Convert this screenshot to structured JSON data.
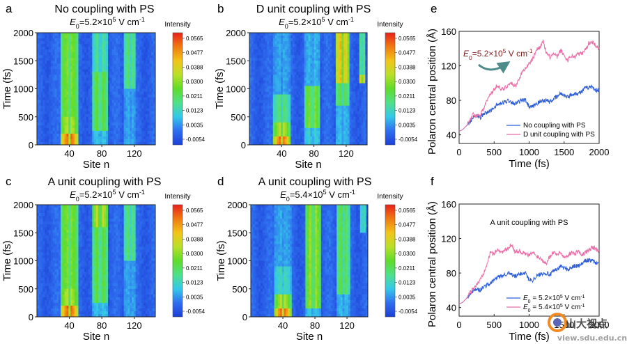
{
  "colorbar": {
    "label": "Intensity",
    "ticks": [
      "0.0565",
      "0.0477",
      "0.0388",
      "0.0300",
      "0.0211",
      "0.0123",
      "0.0035",
      "-0.0054"
    ],
    "range": [
      -0.0085,
      0.061
    ],
    "colors": [
      "#1c3fd6",
      "#2f6ef0",
      "#35c8ea",
      "#4fe08a",
      "#5fdc2a",
      "#b9e02a",
      "#f2c418",
      "#f07a12",
      "#e8201a"
    ]
  },
  "chart_data": [
    {
      "id": "a",
      "type": "heatmap",
      "letter": "a",
      "title": "No coupling with PS",
      "subtitle": {
        "prefix": "E",
        "sub": "0",
        "eq": "=5.2×10",
        "sup": "5",
        "unit": " V cm",
        "unitsup": "-1"
      },
      "xlabel": "Site n",
      "ylabel": "Time (fs)",
      "xticks": [
        40,
        80,
        120
      ],
      "yticks": [
        0,
        500,
        1000,
        1500,
        2000
      ],
      "xlim": [
        0,
        146
      ],
      "ylim": [
        0,
        2000
      ],
      "bands": [
        {
          "center": 40,
          "width": 22,
          "segments": [
            [
              0,
              200,
              0.055
            ],
            [
              200,
              500,
              0.036
            ],
            [
              500,
              2000,
              0.03
            ]
          ]
        },
        {
          "center": 78,
          "width": 18,
          "segments": [
            [
              0,
              250,
              0.01
            ],
            [
              250,
              1300,
              0.028
            ],
            [
              1300,
              2000,
              0.018
            ]
          ]
        },
        {
          "center": 115,
          "width": 14,
          "segments": [
            [
              0,
              1000,
              0.006
            ],
            [
              1000,
              2000,
              0.022
            ]
          ]
        }
      ]
    },
    {
      "id": "b",
      "type": "heatmap",
      "letter": "b",
      "title": "D unit coupling with PS",
      "subtitle": {
        "prefix": "E",
        "sub": "0",
        "eq": "=5.2×10",
        "sup": "5",
        "unit": " V cm",
        "unitsup": "-1"
      },
      "xlabel": "Site n",
      "ylabel": "Time (fs)",
      "xticks": [
        40,
        80,
        120
      ],
      "yticks": [
        0,
        500,
        1000,
        1500,
        2000
      ],
      "xlim": [
        0,
        146
      ],
      "ylim": [
        0,
        2000
      ],
      "bands": [
        {
          "center": 40,
          "width": 20,
          "segments": [
            [
              0,
              150,
              0.055
            ],
            [
              150,
              400,
              0.036
            ],
            [
              400,
              900,
              0.02
            ],
            [
              900,
              2000,
              0.006
            ]
          ]
        },
        {
          "center": 78,
          "width": 18,
          "segments": [
            [
              0,
              300,
              0.012
            ],
            [
              300,
              1050,
              0.032
            ],
            [
              1050,
              2000,
              0.008
            ]
          ]
        },
        {
          "center": 115,
          "width": 18,
          "segments": [
            [
              0,
              700,
              0.008
            ],
            [
              700,
              1100,
              0.024
            ],
            [
              1100,
              2000,
              0.046
            ]
          ]
        },
        {
          "center": 140,
          "width": 8,
          "segments": [
            [
              1100,
              1250,
              0.05
            ],
            [
              1250,
              2000,
              0.022
            ]
          ]
        }
      ]
    },
    {
      "id": "c",
      "type": "heatmap",
      "letter": "c",
      "title": "A unit coupling with PS",
      "subtitle": {
        "prefix": "E",
        "sub": "0",
        "eq": "=5.2×10",
        "sup": "5",
        "unit": " V cm",
        "unitsup": "-1"
      },
      "xlabel": "Site n",
      "ylabel": "Time (fs)",
      "xticks": [
        40,
        80,
        120
      ],
      "yticks": [
        0,
        500,
        1000,
        1500,
        2000
      ],
      "xlim": [
        0,
        146
      ],
      "ylim": [
        0,
        2000
      ],
      "bands": [
        {
          "center": 40,
          "width": 22,
          "segments": [
            [
              0,
              200,
              0.055
            ],
            [
              200,
              500,
              0.036
            ],
            [
              500,
              2000,
              0.03
            ]
          ]
        },
        {
          "center": 78,
          "width": 18,
          "segments": [
            [
              0,
              250,
              0.01
            ],
            [
              250,
              1600,
              0.028
            ],
            [
              1600,
              2000,
              0.04
            ]
          ]
        },
        {
          "center": 115,
          "width": 14,
          "segments": [
            [
              0,
              1000,
              0.006
            ],
            [
              1000,
              2000,
              0.022
            ]
          ]
        }
      ]
    },
    {
      "id": "d",
      "type": "heatmap",
      "letter": "d",
      "title": "A unit coupling with PS",
      "subtitle": {
        "prefix": "E",
        "sub": "0",
        "eq": "=5.4×10",
        "sup": "5",
        "unit": " V cm",
        "unitsup": "-1"
      },
      "xlabel": "Site n",
      "ylabel": "Time (fs)",
      "xticks": [
        40,
        80,
        120
      ],
      "yticks": [
        0,
        500,
        1000,
        1500,
        2000
      ],
      "xlim": [
        0,
        146
      ],
      "ylim": [
        0,
        2000
      ],
      "bands": [
        {
          "center": 40,
          "width": 20,
          "segments": [
            [
              0,
              150,
              0.055
            ],
            [
              150,
              400,
              0.036
            ],
            [
              400,
              900,
              0.014
            ],
            [
              900,
              2000,
              0.006
            ]
          ]
        },
        {
          "center": 78,
          "width": 20,
          "segments": [
            [
              0,
              150,
              0.01
            ],
            [
              150,
              2000,
              0.034
            ]
          ]
        },
        {
          "center": 115,
          "width": 16,
          "segments": [
            [
              0,
              400,
              0.008
            ],
            [
              400,
              2000,
              0.024
            ]
          ]
        },
        {
          "center": 140,
          "width": 6,
          "segments": [
            [
              1500,
              2000,
              0.018
            ]
          ]
        }
      ]
    },
    {
      "id": "e",
      "type": "line",
      "letter": "e",
      "xlabel": "Time (fs)",
      "ylabel": "Polaron central position (Å)",
      "xlim": [
        0,
        2000
      ],
      "ylim": [
        30,
        160
      ],
      "xticks": [
        0,
        500,
        1000,
        1500,
        2000
      ],
      "yticks": [
        40,
        80,
        120,
        160
      ],
      "annotation": {
        "prefix": "E",
        "sub": "0",
        "eq": "=5.2×10",
        "sup": "5",
        "unit": " V cm",
        "unitsup": "-1"
      },
      "legend_position": "bottom-right",
      "x": [
        0,
        50,
        100,
        150,
        200,
        250,
        300,
        350,
        400,
        450,
        500,
        550,
        600,
        650,
        700,
        750,
        800,
        850,
        900,
        950,
        1000,
        1050,
        1100,
        1150,
        1200,
        1250,
        1300,
        1350,
        1400,
        1450,
        1500,
        1550,
        1600,
        1650,
        1700,
        1750,
        1800,
        1850,
        1900,
        1950,
        2000
      ],
      "series": [
        {
          "name": "No coupling with PS",
          "color": "#2f5fd6",
          "values": [
            44,
            46,
            50,
            54,
            60,
            62,
            60,
            64,
            66,
            68,
            72,
            75,
            76,
            78,
            80,
            78,
            76,
            78,
            80,
            80,
            72,
            72,
            76,
            78,
            80,
            80,
            78,
            82,
            84,
            88,
            86,
            84,
            86,
            88,
            88,
            90,
            94,
            95,
            96,
            92,
            92
          ]
        },
        {
          "name": "D unit coupling with PS",
          "color": "#e86fa8",
          "values": [
            44,
            46,
            50,
            56,
            64,
            62,
            64,
            70,
            80,
            88,
            92,
            98,
            92,
            94,
            98,
            100,
            96,
            104,
            112,
            118,
            122,
            128,
            138,
            142,
            148,
            134,
            130,
            134,
            130,
            138,
            132,
            126,
            132,
            130,
            134,
            134,
            138,
            146,
            148,
            144,
            140
          ]
        }
      ]
    },
    {
      "id": "f",
      "type": "line",
      "letter": "f",
      "xlabel": "Time (fs)",
      "ylabel": "Polaron central position (Å)",
      "xlim": [
        0,
        2000
      ],
      "ylim": [
        30,
        160
      ],
      "xticks": [
        0,
        500,
        1000,
        1500,
        2000
      ],
      "yticks": [
        40,
        80,
        120,
        160
      ],
      "inset_title": "A unit coupling with PS",
      "legend_position": "bottom-right",
      "x": [
        0,
        50,
        100,
        150,
        200,
        250,
        300,
        350,
        400,
        450,
        500,
        550,
        600,
        650,
        700,
        750,
        800,
        850,
        900,
        950,
        1000,
        1050,
        1100,
        1150,
        1200,
        1250,
        1300,
        1350,
        1400,
        1450,
        1500,
        1550,
        1600,
        1650,
        1700,
        1750,
        1800,
        1850,
        1900,
        1950,
        2000
      ],
      "series": [
        {
          "name": "E0 = 5.2×10^5 V cm^-1",
          "color": "#2f5fd6",
          "label": {
            "prefix": "E",
            "sub": "0",
            "eq": " = 5.2×10",
            "sup": "5",
            "unit": " V cm",
            "unitsup": "-1"
          },
          "values": [
            44,
            46,
            50,
            54,
            60,
            62,
            60,
            64,
            66,
            68,
            72,
            75,
            76,
            78,
            80,
            78,
            76,
            78,
            80,
            80,
            72,
            72,
            76,
            78,
            80,
            80,
            78,
            82,
            84,
            88,
            86,
            84,
            86,
            88,
            88,
            90,
            94,
            95,
            94,
            92,
            92
          ]
        },
        {
          "name": "E0 = 5.4×10^5 V cm^-1",
          "color": "#e86fa8",
          "label": {
            "prefix": "E",
            "sub": "0",
            "eq": " = 5.4×10",
            "sup": "5",
            "unit": " V cm",
            "unitsup": "-1"
          },
          "values": [
            44,
            46,
            50,
            56,
            62,
            66,
            72,
            80,
            92,
            104,
            102,
            108,
            104,
            106,
            108,
            114,
            104,
            106,
            104,
            102,
            100,
            104,
            100,
            98,
            94,
            92,
            100,
            104,
            102,
            104,
            98,
            100,
            104,
            102,
            106,
            100,
            104,
            106,
            110,
            108,
            106
          ]
        }
      ]
    }
  ],
  "watermark": {
    "cn": "山大视点",
    "url": "view.sdu.edu.cn"
  }
}
